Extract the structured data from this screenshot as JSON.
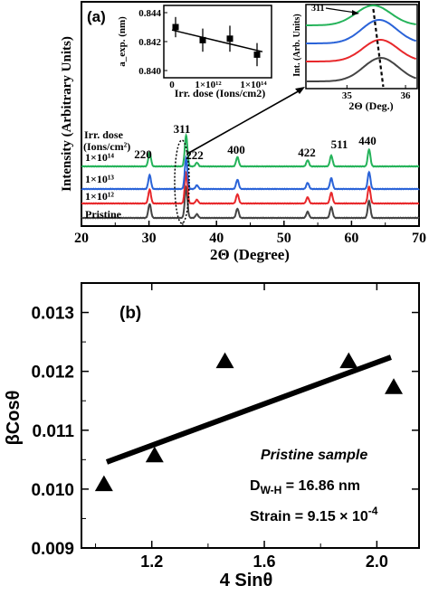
{
  "figure": {
    "panel_a_label": "(a)",
    "panel_b_label": "(b)"
  },
  "chart_data": [
    {
      "type": "line",
      "panel": "(a)",
      "xlabel": "2Θ (Degree)",
      "ylabel": "Intensity (Arbitrary Units)",
      "xlim": [
        20,
        70
      ],
      "xticks": [
        "20",
        "30",
        "40",
        "50",
        "60",
        "70"
      ],
      "legend_title": [
        "Irr. dose",
        "(Ions/cm²)"
      ],
      "series": [
        {
          "name": "Pristine",
          "color": "#444444"
        },
        {
          "name": "1×10¹²",
          "color": "#e8282b"
        },
        {
          "name": "1×10¹³",
          "color": "#2a63d8"
        },
        {
          "name": "1×10¹⁴",
          "color": "#25b35a"
        }
      ],
      "peaks": [
        {
          "label": "220",
          "x": 30.1,
          "h": 0.45
        },
        {
          "label": "311",
          "x": 35.5,
          "h": 1.0
        },
        {
          "label": "222",
          "x": 37.1,
          "h": 0.12
        },
        {
          "label": "400",
          "x": 43.1,
          "h": 0.3
        },
        {
          "label": "422",
          "x": 53.5,
          "h": 0.2
        },
        {
          "label": "511",
          "x": 57.0,
          "h": 0.35
        },
        {
          "label": "440",
          "x": 62.6,
          "h": 0.55
        }
      ]
    },
    {
      "type": "scatter",
      "panel": "(a) inset left",
      "xlabel": "Irr. dose (Ions/cm2)",
      "ylabel": "a_exp. (nm)",
      "xticks": [
        "0",
        "1×10¹²",
        "1×10¹⁴"
      ],
      "yticks": [
        "0.840",
        "0.842",
        "0.844"
      ],
      "ylim": [
        0.8395,
        0.8445
      ],
      "x_index": [
        0,
        1,
        2,
        3
      ],
      "values": [
        0.843,
        0.8421,
        0.8422,
        0.8411
      ],
      "errors": [
        0.0007,
        0.0008,
        0.0009,
        0.0008
      ],
      "fit": [
        0.8428,
        0.8413
      ]
    },
    {
      "type": "line",
      "panel": "(a) inset right",
      "xlabel": "2Θ (Deg.)",
      "ylabel": "Int. (Arb. Units)",
      "xlim": [
        34.3,
        36.2
      ],
      "xticks": [
        "35",
        "36"
      ],
      "peak_label": "311",
      "peak_center": 35.55
    },
    {
      "type": "scatter",
      "panel": "(b)",
      "xlabel": "4 Sinθ",
      "ylabel": "βCosθ",
      "xlim": [
        0.95,
        2.15
      ],
      "ylim": [
        0.009,
        0.0135
      ],
      "xticks": [
        "1.2",
        "1.6",
        "2.0"
      ],
      "yticks": [
        "0.009",
        "0.010",
        "0.011",
        "0.012",
        "0.013"
      ],
      "points": [
        {
          "x": 1.03,
          "y": 0.01008
        },
        {
          "x": 1.21,
          "y": 0.01057
        },
        {
          "x": 1.46,
          "y": 0.01217
        },
        {
          "x": 1.9,
          "y": 0.01217
        },
        {
          "x": 2.06,
          "y": 0.01173
        }
      ],
      "fit": {
        "x0": 1.04,
        "y0": 0.01046,
        "x1": 2.05,
        "y1": 0.01224
      },
      "annotations": {
        "sample": "Pristine sample",
        "dwh_prefix": "D",
        "dwh_sub": "W-H",
        "dwh_value": " = 16.86 nm",
        "strain_prefix": "Strain = 9.15 × 10",
        "strain_exp": "-4"
      }
    }
  ]
}
